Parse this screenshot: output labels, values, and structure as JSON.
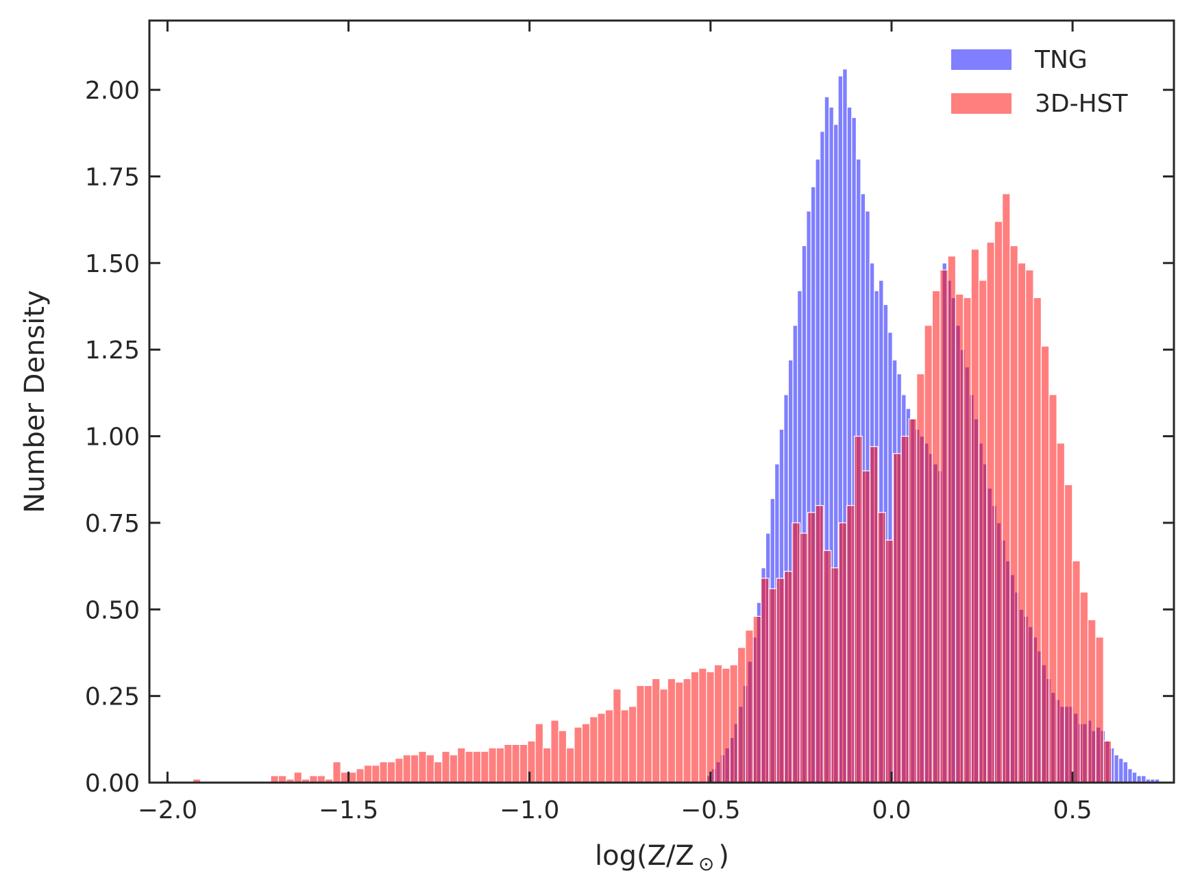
{
  "chart_data": {
    "type": "histogram",
    "title": "",
    "xlabel": "log(Z/Z",
    "xlabel_sub": "⊙",
    "xlabel_close": ")",
    "ylabel": "Number Density",
    "xlim": [
      -2.05,
      0.78
    ],
    "ylim": [
      0,
      2.2
    ],
    "x_ticks": [
      -2.0,
      -1.5,
      -1.0,
      -0.5,
      0.0,
      0.5
    ],
    "x_tick_labels": [
      "−2.0",
      "−1.5",
      "−1.0",
      "−0.5",
      "0.0",
      "0.5"
    ],
    "y_ticks": [
      0,
      0.25,
      0.5,
      0.75,
      1.0,
      1.25,
      1.5,
      1.75,
      2.0
    ],
    "y_tick_labels": [
      "0.00",
      "0.25",
      "0.50",
      "0.75",
      "1.00",
      "1.25",
      "1.50",
      "1.75",
      "2.00"
    ],
    "grid": false,
    "legend_position": "top-right",
    "series": [
      {
        "name": "TNG",
        "color": "#0000ff",
        "alpha": 0.5,
        "bin_start": -0.51,
        "bin_width": 0.0125,
        "values": [
          0.02,
          0.04,
          0.06,
          0.08,
          0.1,
          0.13,
          0.17,
          0.22,
          0.28,
          0.35,
          0.42,
          0.52,
          0.62,
          0.72,
          0.82,
          0.92,
          1.02,
          1.12,
          1.22,
          1.32,
          1.42,
          1.55,
          1.65,
          1.72,
          1.8,
          1.88,
          1.98,
          1.95,
          1.9,
          2.04,
          2.06,
          1.95,
          1.92,
          1.8,
          1.7,
          1.65,
          1.5,
          1.42,
          1.45,
          1.38,
          1.3,
          1.22,
          1.18,
          1.12,
          1.08,
          1.05,
          1.02,
          1.0,
          0.98,
          0.95,
          0.92,
          0.9,
          1.5,
          1.45,
          1.4,
          1.32,
          1.25,
          1.2,
          1.12,
          1.05,
          0.98,
          0.92,
          0.85,
          0.8,
          0.75,
          0.7,
          0.64,
          0.6,
          0.55,
          0.5,
          0.48,
          0.45,
          0.42,
          0.38,
          0.34,
          0.3,
          0.26,
          0.24,
          0.22,
          0.22,
          0.22,
          0.2,
          0.17,
          0.17,
          0.18,
          0.15,
          0.16,
          0.15,
          0.12,
          0.1,
          0.08,
          0.07,
          0.06,
          0.04,
          0.03,
          0.02,
          0.02,
          0.01,
          0.01,
          0.01
        ]
      },
      {
        "name": "3D-HST",
        "color": "#ff0000",
        "alpha": 0.5,
        "bin_start": -1.93,
        "bin_width": 0.0215,
        "values": [
          0.01,
          0,
          0,
          0,
          0,
          0,
          0,
          0,
          0,
          0,
          0.02,
          0.02,
          0.01,
          0.03,
          0.01,
          0.02,
          0.02,
          0.01,
          0.06,
          0.03,
          0.03,
          0.04,
          0.05,
          0.05,
          0.06,
          0.06,
          0.07,
          0.08,
          0.08,
          0.09,
          0.08,
          0.06,
          0.09,
          0.08,
          0.1,
          0.09,
          0.09,
          0.09,
          0.1,
          0.1,
          0.11,
          0.11,
          0.11,
          0.12,
          0.17,
          0.1,
          0.18,
          0.15,
          0.1,
          0.16,
          0.17,
          0.19,
          0.2,
          0.21,
          0.27,
          0.21,
          0.22,
          0.28,
          0.28,
          0.3,
          0.27,
          0.3,
          0.29,
          0.3,
          0.32,
          0.33,
          0.32,
          0.34,
          0.33,
          0.34,
          0.39,
          0.44,
          0.48,
          0.59,
          0.56,
          0.59,
          0.61,
          0.75,
          0.72,
          0.78,
          0.8,
          0.67,
          0.62,
          0.75,
          0.8,
          1.0,
          0.9,
          0.97,
          0.78,
          0.7,
          0.95,
          1.0,
          1.05,
          1.18,
          1.32,
          1.42,
          1.48,
          1.52,
          1.41,
          1.4,
          1.54,
          1.45,
          1.56,
          1.62,
          1.7,
          1.55,
          1.5,
          1.48,
          1.4,
          1.26,
          1.12,
          0.98,
          0.86,
          0.64,
          0.55,
          0.47,
          0.42,
          0.12
        ]
      }
    ]
  }
}
